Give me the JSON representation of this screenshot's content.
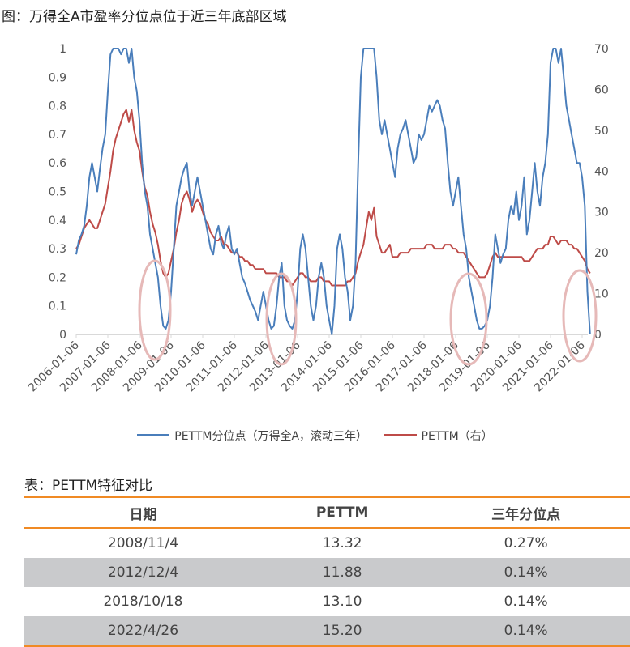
{
  "title": "图：万得全A市盈率分位点位于近三年底部区域",
  "chart_data": {
    "type": "line",
    "title": "图：万得全A市盈率分位点位于近三年底部区域",
    "x_start": "2006-01",
    "x_end": "2022-04",
    "x_frequency": "monthly",
    "x_tick_labels": [
      "2006-01-06",
      "2007-01-06",
      "2008-01-06",
      "2009-01-06",
      "2010-01-06",
      "2011-01-06",
      "2012-01-06",
      "2013-01-06",
      "2014-01-06",
      "2015-01-06",
      "2016-01-06",
      "2017-01-06",
      "2018-01-06",
      "2019-01-06",
      "2020-01-06",
      "2021-01-06",
      "2022-01-06"
    ],
    "y_left_ticks": [
      "0",
      "0.1",
      "0.2",
      "0.3",
      "0.4",
      "0.5",
      "0.6",
      "0.7",
      "0.8",
      "0.9",
      "1"
    ],
    "y_right_ticks": [
      "0",
      "10",
      "20",
      "30",
      "40",
      "50",
      "60",
      "70"
    ],
    "ylim_left": [
      0,
      1
    ],
    "ylim_right": [
      0,
      70
    ],
    "legend_position": "bottom",
    "series": [
      {
        "name": "PETTM分位点（万得全A，滚动三年）",
        "axis": "left",
        "color": "#4a7ebb",
        "values": [
          0.28,
          0.33,
          0.35,
          0.38,
          0.45,
          0.55,
          0.6,
          0.55,
          0.5,
          0.58,
          0.65,
          0.7,
          0.85,
          0.98,
          1,
          1,
          1,
          0.98,
          1,
          1,
          0.95,
          1,
          0.9,
          0.85,
          0.75,
          0.6,
          0.5,
          0.45,
          0.35,
          0.3,
          0.25,
          0.2,
          0.1,
          0.03,
          0.02,
          0.05,
          0.15,
          0.3,
          0.45,
          0.5,
          0.55,
          0.58,
          0.6,
          0.5,
          0.45,
          0.5,
          0.55,
          0.5,
          0.45,
          0.4,
          0.35,
          0.3,
          0.28,
          0.35,
          0.38,
          0.32,
          0.3,
          0.35,
          0.38,
          0.3,
          0.28,
          0.3,
          0.25,
          0.2,
          0.18,
          0.15,
          0.12,
          0.1,
          0.08,
          0.05,
          0.1,
          0.15,
          0.1,
          0.05,
          0.02,
          0.03,
          0.1,
          0.2,
          0.25,
          0.1,
          0.05,
          0.03,
          0.02,
          0.05,
          0.15,
          0.3,
          0.35,
          0.3,
          0.2,
          0.1,
          0.05,
          0.1,
          0.2,
          0.25,
          0.2,
          0.1,
          0.05,
          0.0,
          0.1,
          0.3,
          0.35,
          0.3,
          0.2,
          0.15,
          0.05,
          0.1,
          0.25,
          0.6,
          0.9,
          1,
          1,
          1,
          1,
          1,
          0.9,
          0.75,
          0.7,
          0.75,
          0.7,
          0.65,
          0.6,
          0.55,
          0.65,
          0.7,
          0.72,
          0.75,
          0.7,
          0.65,
          0.6,
          0.62,
          0.7,
          0.68,
          0.7,
          0.75,
          0.8,
          0.78,
          0.8,
          0.82,
          0.8,
          0.75,
          0.72,
          0.6,
          0.5,
          0.45,
          0.5,
          0.55,
          0.45,
          0.35,
          0.3,
          0.2,
          0.15,
          0.1,
          0.05,
          0.02,
          0.02,
          0.03,
          0.05,
          0.1,
          0.2,
          0.35,
          0.3,
          0.25,
          0.28,
          0.3,
          0.4,
          0.45,
          0.42,
          0.5,
          0.4,
          0.45,
          0.55,
          0.35,
          0.4,
          0.5,
          0.6,
          0.5,
          0.45,
          0.55,
          0.6,
          0.7,
          0.95,
          1,
          1,
          0.95,
          1,
          0.9,
          0.8,
          0.75,
          0.7,
          0.65,
          0.6,
          0.6,
          0.55,
          0.45,
          0.15,
          0.0
        ]
      },
      {
        "name": "PETTM（右）",
        "axis": "right",
        "color": "#be4b48",
        "values": [
          21,
          22,
          24,
          26,
          27,
          28,
          27,
          26,
          26,
          28,
          30,
          32,
          36,
          40,
          45,
          48,
          50,
          52,
          54,
          55,
          52,
          55,
          50,
          47,
          45,
          40,
          36,
          34,
          30,
          27,
          25,
          22,
          18,
          15,
          14,
          15,
          18,
          21,
          25,
          28,
          32,
          34,
          35,
          33,
          30,
          32,
          33,
          32,
          30,
          28,
          27,
          25,
          24,
          23,
          23,
          24,
          22,
          22,
          21,
          20,
          20,
          20,
          19,
          19,
          18,
          18,
          17,
          17,
          16,
          16,
          16,
          16,
          15,
          15,
          15,
          15,
          15,
          14,
          14,
          14,
          13,
          13,
          12,
          13,
          14,
          15,
          15,
          14,
          14,
          13,
          13,
          13,
          14,
          14,
          13,
          13,
          13,
          12,
          12,
          12,
          12,
          12,
          12,
          13,
          13,
          14,
          15,
          18,
          20,
          22,
          26,
          30,
          28,
          31,
          24,
          22,
          20,
          20,
          21,
          22,
          19,
          19,
          19,
          20,
          20,
          20,
          20,
          21,
          21,
          21,
          21,
          21,
          21,
          22,
          22,
          22,
          21,
          21,
          21,
          21,
          22,
          22,
          22,
          21,
          21,
          20,
          20,
          20,
          19,
          18,
          17,
          16,
          15,
          14,
          14,
          14,
          15,
          17,
          19,
          20,
          19,
          19,
          19,
          19,
          19,
          19,
          19,
          19,
          19,
          19,
          18,
          18,
          18,
          19,
          20,
          21,
          21,
          21,
          22,
          22,
          24,
          24,
          23,
          22,
          23,
          23,
          23,
          22,
          22,
          21,
          21,
          20,
          19,
          18,
          16,
          15
        ]
      }
    ],
    "highlight_ellipse_color": "#e6b9b8"
  },
  "table": {
    "title": "表：PETTM特征对比",
    "headers": [
      "日期",
      "PETTM",
      "三年分位点"
    ],
    "rows": [
      [
        "2008/11/4",
        "13.32",
        "0.27%"
      ],
      [
        "2012/12/4",
        "11.88",
        "0.14%"
      ],
      [
        "2018/10/18",
        "13.10",
        "0.14%"
      ],
      [
        "2022/4/26",
        "15.20",
        "0.14%"
      ]
    ]
  }
}
